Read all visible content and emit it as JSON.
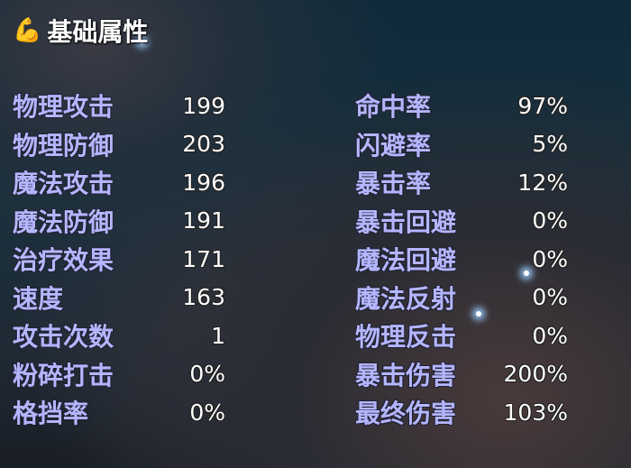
{
  "title": "基础属性",
  "title_icon": "flexed-arm-icon",
  "left": [
    {
      "label": "物理攻击",
      "value": "199"
    },
    {
      "label": "物理防御",
      "value": "203"
    },
    {
      "label": "魔法攻击",
      "value": "196"
    },
    {
      "label": "魔法防御",
      "value": "191"
    },
    {
      "label": "治疗效果",
      "value": "171"
    },
    {
      "label": "速度",
      "value": "163"
    },
    {
      "label": "攻击次数",
      "value": "1"
    },
    {
      "label": "粉碎打击",
      "value": "0%"
    },
    {
      "label": "格挡率",
      "value": "0%"
    }
  ],
  "right": [
    {
      "label": "命中率",
      "value": "97%"
    },
    {
      "label": "闪避率",
      "value": "5%"
    },
    {
      "label": "暴击率",
      "value": "12%"
    },
    {
      "label": "暴击回避",
      "value": "0%"
    },
    {
      "label": "魔法回避",
      "value": "0%"
    },
    {
      "label": "魔法反射",
      "value": "0%"
    },
    {
      "label": "物理反击",
      "value": "0%"
    },
    {
      "label": "暴击伤害",
      "value": "200%"
    },
    {
      "label": "最终伤害",
      "value": "103%"
    }
  ],
  "colors": {
    "label": "#b4b6ff",
    "value": "#ffffff"
  }
}
